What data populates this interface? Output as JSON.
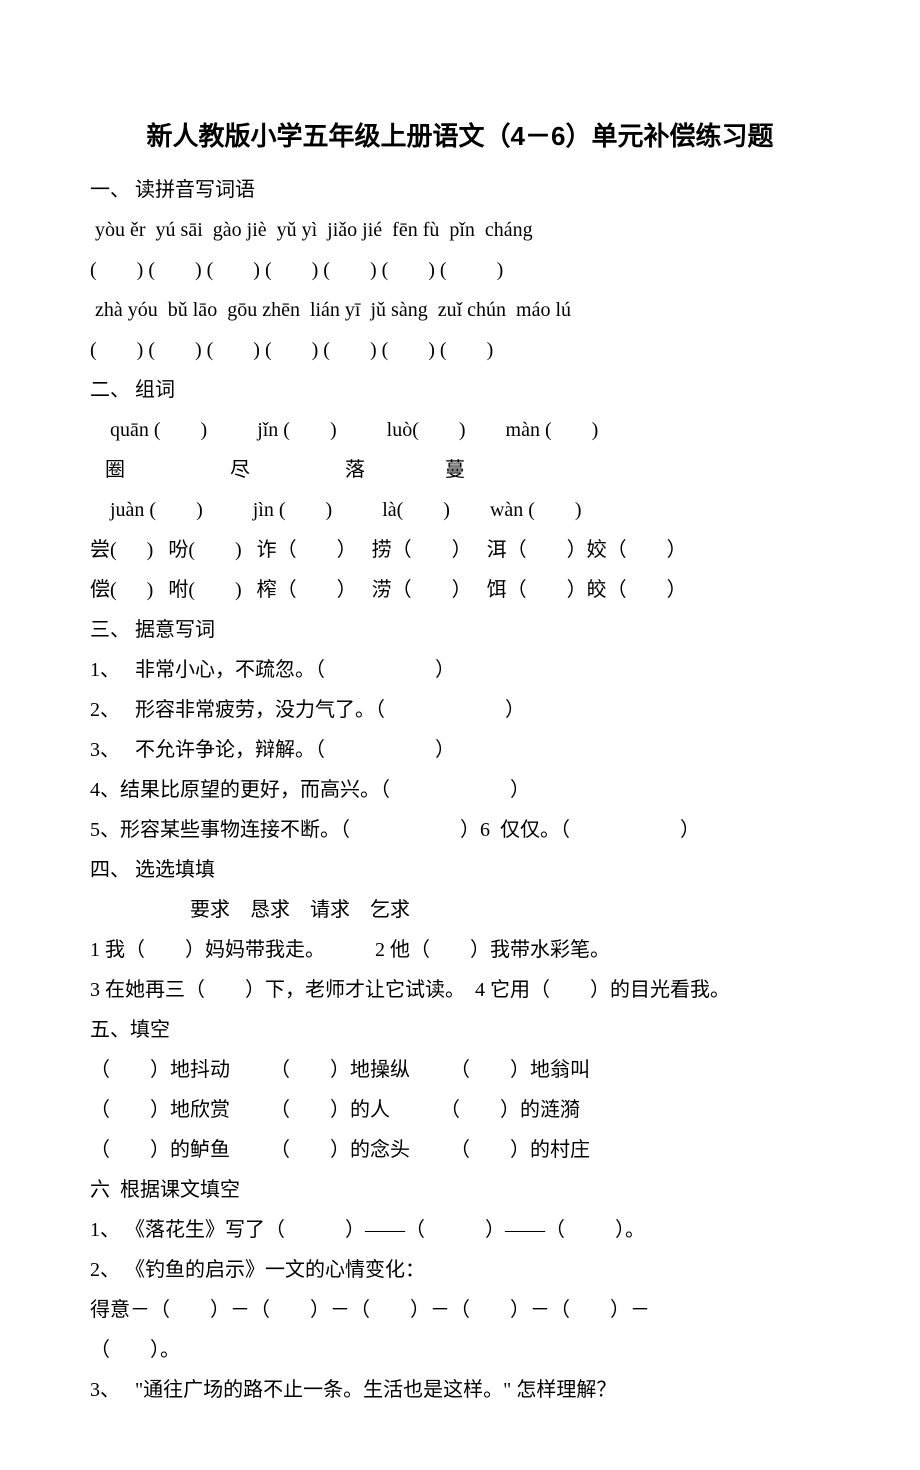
{
  "title": "新人教版小学五年级上册语文（4－6）单元补偿练习题",
  "section1": {
    "heading": "一、 读拼音写词语",
    "pinyin1": " yòu ěr  yú sāi  gào jiè  yǔ yì  jiǎo jié  fēn fù  pǐn  cháng",
    "blanks1": "(        ) (        ) (        ) (        ) (        ) (        ) (          )",
    "pinyin2": " zhà yóu  bǔ lāo  gōu zhēn  lián yī  jǔ sàng  zuǐ chún  máo lú",
    "blanks2": "(        ) (        ) (        ) (        ) (        ) (        ) (        )"
  },
  "section2": {
    "heading": "二、 组词",
    "row1": "    quān (        )          jǐn (        )          luò(        )        màn (        )",
    "row2": "   圈                     尽                   落                蔓",
    "row3": "    juàn (        )          jìn (        )          là(        )        wàn (        )",
    "row4": "尝(      )   吩(        )   诈（        ）   捞（        ）   洱（        ）姣（        ）",
    "row5": "偿(      )   咐(        )   榨（        ）   涝（        ）   饵（        ）皎（        ）"
  },
  "section3": {
    "heading": "三、 据意写词",
    "items": [
      "1、   非常小心，不疏忽。（                      ）",
      "2、   形容非常疲劳，没力气了。（                        ）",
      "3、   不允许争论，辩解。（                      ）",
      "4、结果比原望的更好，而高兴。（                        ）",
      "5、形容某些事物连接不断。（                      ）6  仅仅。（                      ）"
    ]
  },
  "section4": {
    "heading": "四、 选选填填",
    "words": "                    要求    恳求    请求    乞求",
    "q1": "1 我（        ）妈妈带我走。          2 他（        ）我带水彩笔。",
    "q2": "3 在她再三（        ）下，老师才让它试读。  4 它用（        ）的目光看我。"
  },
  "section5": {
    "heading": "五、填空",
    "row1": "（        ）地抖动        （        ）地操纵        （        ）地翁叫",
    "row2": "（        ）地欣赏        （        ）的人          （        ）的涟漪",
    "row3": "（        ）的鲈鱼        （        ）的念头        （        ）的村庄"
  },
  "section6": {
    "heading": "六  根据课文填空",
    "q1": "1、 《落花生》写了（            ）——（            ）——（          ）。",
    "q2": "2、 《钓鱼的启示》一文的心情变化：",
    "q2b": "得意－（        ）－（        ）－（        ）－（        ）－（        ）－",
    "q2c": "（        ）。",
    "q3": "3、   \"通往广场的路不止一条。生活也是这样。\" 怎样理解？"
  },
  "style": {
    "background": "#ffffff",
    "text_color": "#000000",
    "title_fontsize": 26,
    "body_fontsize": 20,
    "body_font": "SimSun",
    "title_font": "SimHei",
    "line_height": 2.0
  }
}
